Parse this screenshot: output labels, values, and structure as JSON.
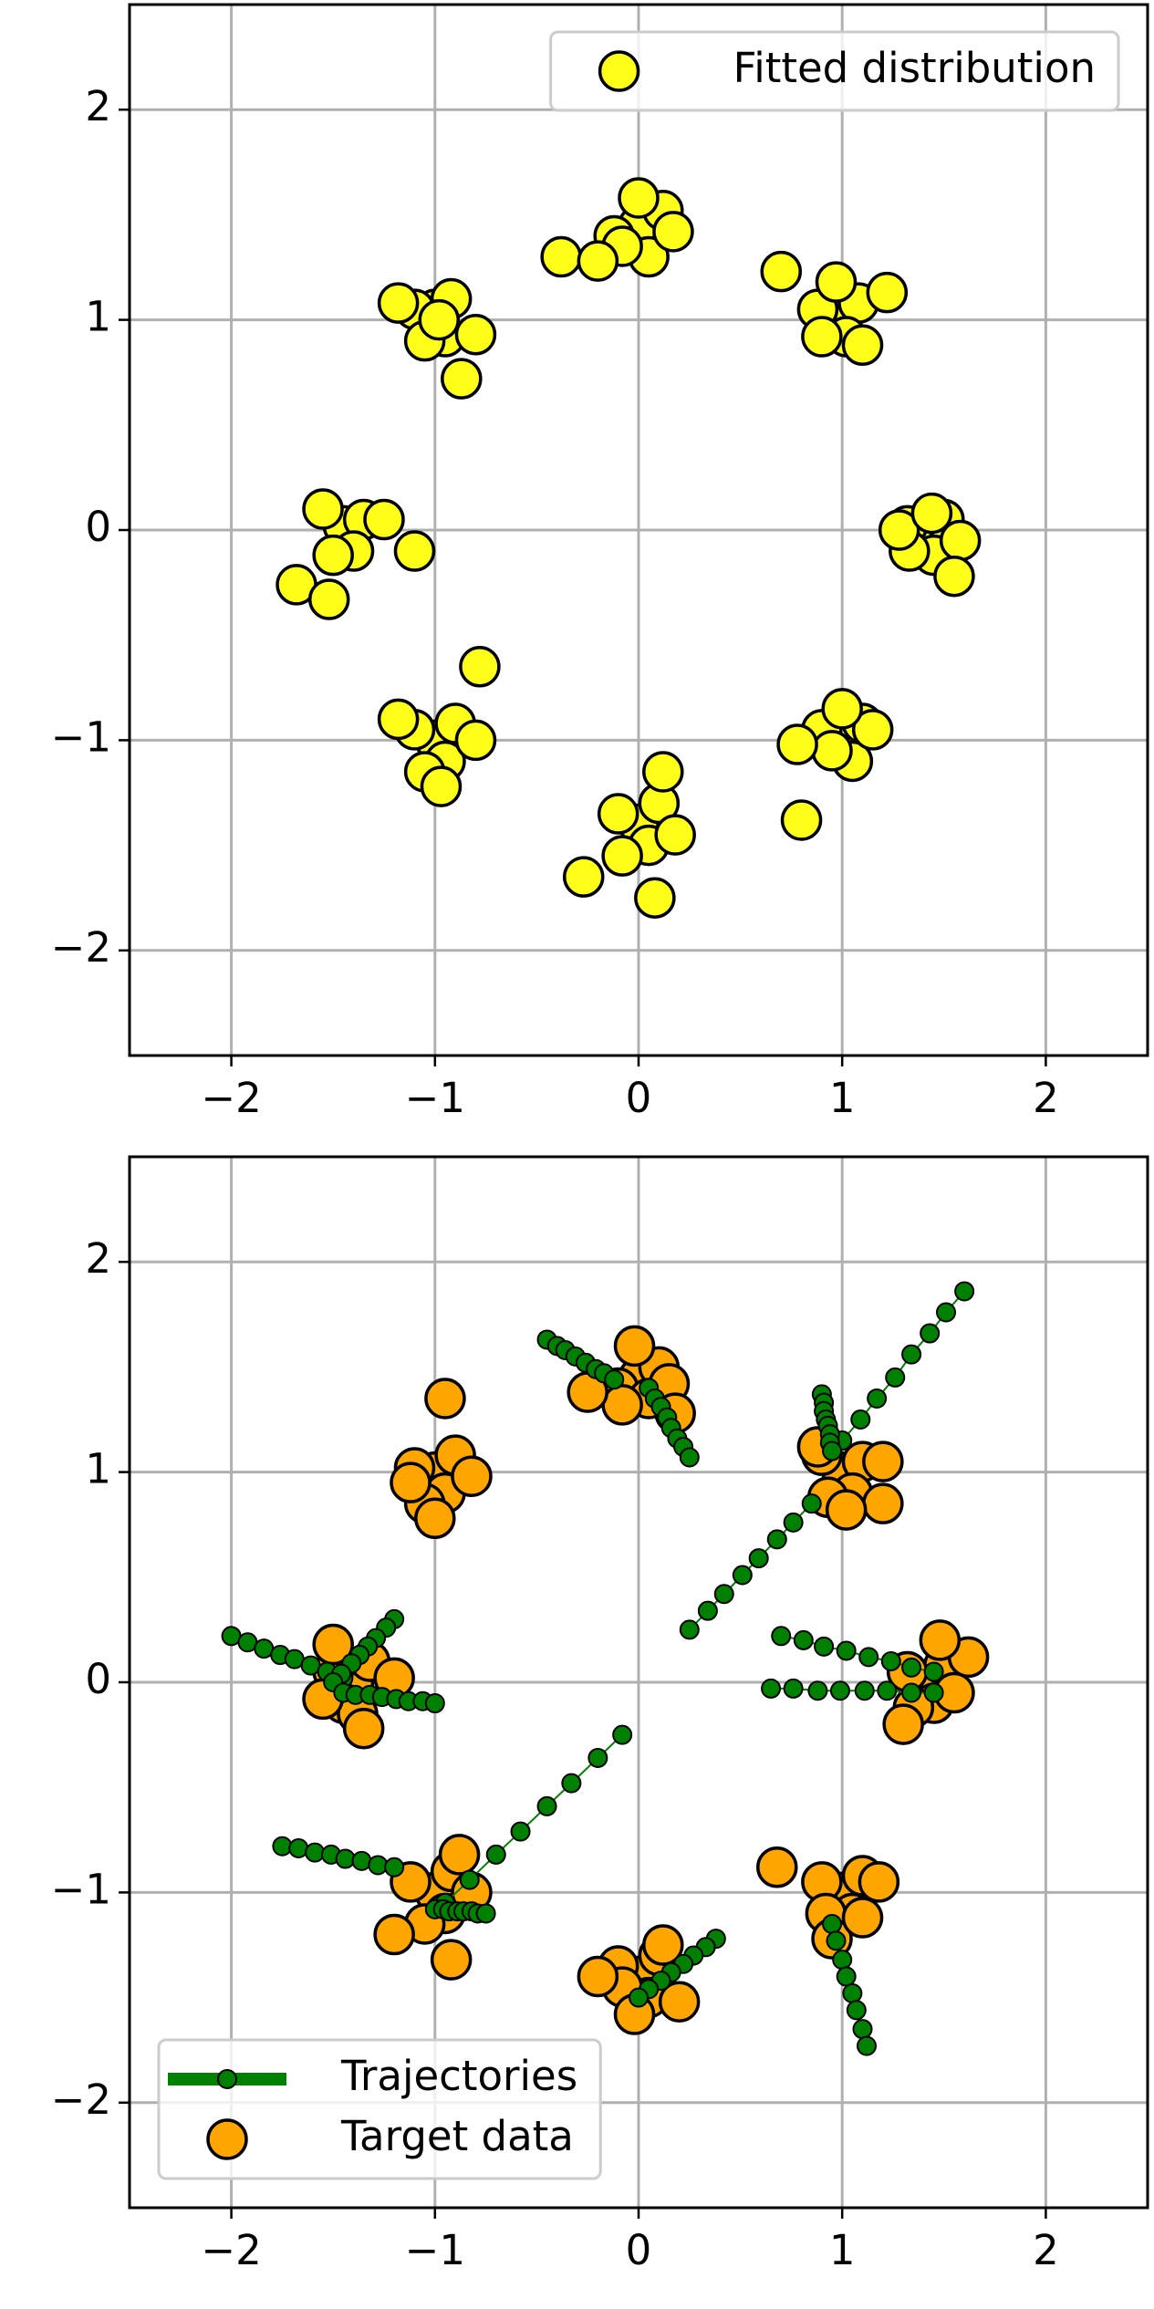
{
  "chart_data": [
    {
      "type": "scatter",
      "xlim": [
        -2.5,
        2.5
      ],
      "ylim": [
        -2.5,
        2.5
      ],
      "xticks": [
        {
          "value": -2,
          "label": "−2"
        },
        {
          "value": -1,
          "label": "−1"
        },
        0,
        1,
        2
      ],
      "yticks": [
        {
          "value": -2,
          "label": "−2"
        },
        {
          "value": -1,
          "label": "−1"
        },
        0,
        1,
        2
      ],
      "grid": true,
      "legend": "upper right",
      "series": [
        {
          "name": "Fitted distribution",
          "color": "#ffff1a",
          "x": [
            1.41,
            1.5,
            1.32,
            1.45,
            1.33,
            1.58,
            1.28,
            1.44,
            1.55,
            0.98,
            1.08,
            0.88,
            1.02,
            0.9,
            1.22,
            0.7,
            0.97,
            1.1,
            0.0,
            0.12,
            -0.12,
            0.05,
            -0.08,
            0.17,
            -0.38,
            0.0,
            -0.2,
            -1.0,
            -0.92,
            -1.1,
            -0.95,
            -1.05,
            -0.8,
            -1.18,
            -0.87,
            -0.98,
            -1.45,
            -1.35,
            -1.55,
            -1.4,
            -1.5,
            -1.25,
            -1.68,
            -1.52,
            -1.1,
            -1.0,
            -0.9,
            -1.1,
            -0.95,
            -1.05,
            -0.8,
            -1.18,
            -0.97,
            -0.78,
            0.0,
            0.1,
            -0.1,
            0.05,
            -0.08,
            0.18,
            -0.27,
            0.08,
            0.12,
            1.0,
            1.1,
            0.9,
            1.05,
            0.95,
            1.15,
            0.78,
            0.8,
            1.0
          ],
          "y": [
            -0.02,
            0.05,
            0.02,
            -0.12,
            -0.1,
            -0.05,
            0.0,
            0.08,
            -0.22,
            1.02,
            1.08,
            1.05,
            0.92,
            0.92,
            1.13,
            1.23,
            1.18,
            0.88,
            1.45,
            1.52,
            1.4,
            1.3,
            1.35,
            1.42,
            1.3,
            1.58,
            1.28,
            1.05,
            1.1,
            1.05,
            0.92,
            0.9,
            0.93,
            1.08,
            0.72,
            1.0,
            0.02,
            0.05,
            0.1,
            -0.1,
            -0.12,
            0.05,
            -0.26,
            -0.33,
            -0.1,
            -1.0,
            -0.92,
            -0.95,
            -1.1,
            -1.15,
            -1.0,
            -0.9,
            -1.22,
            -0.65,
            -1.4,
            -1.3,
            -1.35,
            -1.5,
            -1.55,
            -1.45,
            -1.65,
            -1.75,
            -1.15,
            -1.0,
            -0.92,
            -0.95,
            -1.1,
            -1.05,
            -0.95,
            -1.02,
            -1.38,
            -0.85
          ]
        }
      ]
    },
    {
      "type": "scatter",
      "xlim": [
        -2.5,
        2.5
      ],
      "ylim": [
        -2.5,
        2.5
      ],
      "xticks": [
        {
          "value": -2,
          "label": "−2"
        },
        {
          "value": -1,
          "label": "−1"
        },
        0,
        1,
        2
      ],
      "yticks": [
        {
          "value": -2,
          "label": "−2"
        },
        {
          "value": -1,
          "label": "−1"
        },
        0,
        1,
        2
      ],
      "grid": true,
      "legend": "lower left",
      "series": [
        {
          "name": "Target data",
          "color": "#ffa500",
          "x": [
            1.4,
            1.5,
            1.32,
            1.45,
            1.35,
            1.62,
            1.48,
            1.55,
            1.3,
            1.0,
            1.1,
            0.9,
            1.05,
            0.93,
            1.2,
            1.2,
            0.88,
            1.02,
            0.0,
            0.1,
            -0.1,
            0.05,
            -0.08,
            0.15,
            -0.25,
            -0.02,
            0.18,
            -1.0,
            -0.9,
            -1.1,
            -0.95,
            -1.05,
            -0.82,
            -1.12,
            -0.95,
            -1.0,
            -1.4,
            -1.32,
            -1.5,
            -1.45,
            -1.38,
            -1.2,
            -1.55,
            -1.35,
            -1.5,
            -1.0,
            -0.92,
            -1.12,
            -0.95,
            -1.05,
            -0.82,
            -1.2,
            -0.92,
            -0.88,
            0.0,
            0.1,
            -0.1,
            0.05,
            -0.08,
            0.2,
            -0.2,
            0.12,
            -0.02,
            1.0,
            1.1,
            0.9,
            1.05,
            0.92,
            1.18,
            0.68,
            0.95,
            1.1
          ],
          "y": [
            0.0,
            0.08,
            0.05,
            -0.1,
            -0.12,
            0.12,
            0.2,
            -0.05,
            -0.2,
            1.0,
            1.05,
            1.08,
            0.9,
            0.88,
            1.05,
            0.85,
            1.12,
            0.82,
            1.45,
            1.5,
            1.4,
            1.35,
            1.32,
            1.42,
            1.38,
            1.6,
            1.28,
            1.0,
            1.08,
            1.02,
            0.9,
            0.85,
            0.98,
            0.95,
            1.35,
            0.78,
            0.0,
            0.1,
            0.05,
            -0.1,
            -0.15,
            0.02,
            -0.08,
            -0.22,
            0.18,
            -1.0,
            -0.9,
            -0.95,
            -1.1,
            -1.15,
            -1.0,
            -1.2,
            -1.32,
            -0.82,
            -1.4,
            -1.3,
            -1.35,
            -1.5,
            -1.45,
            -1.52,
            -1.4,
            -1.25,
            -1.58,
            -1.0,
            -0.92,
            -0.95,
            -1.1,
            -1.1,
            -0.95,
            -0.88,
            -1.22,
            -1.12
          ]
        },
        {
          "name": "Trajectories",
          "type": "line",
          "color": "#008000",
          "paths": [
            {
              "x": [
                -0.45,
                -0.4,
                -0.36,
                -0.31,
                -0.26,
                -0.21,
                -0.17,
                -0.12
              ],
              "y": [
                1.63,
                1.6,
                1.58,
                1.55,
                1.52,
                1.49,
                1.47,
                1.44
              ]
            },
            {
              "x": [
                0.05,
                0.08,
                0.11,
                0.14,
                0.16,
                0.19,
                0.22,
                0.25
              ],
              "y": [
                1.4,
                1.35,
                1.31,
                1.26,
                1.21,
                1.16,
                1.12,
                1.07
              ]
            },
            {
              "x": [
                0.25,
                0.34,
                0.42,
                0.51,
                0.59,
                0.68,
                0.76,
                0.85
              ],
              "y": [
                0.25,
                0.34,
                0.42,
                0.51,
                0.59,
                0.68,
                0.76,
                0.85
              ]
            },
            {
              "x": [
                1.0,
                1.09,
                1.17,
                1.26,
                1.34,
                1.43,
                1.51,
                1.6
              ],
              "y": [
                1.15,
                1.25,
                1.35,
                1.45,
                1.56,
                1.66,
                1.76,
                1.86
              ]
            },
            {
              "x": [
                0.9,
                0.91,
                0.91,
                0.92,
                0.93,
                0.94,
                0.94,
                0.95
              ],
              "y": [
                1.37,
                1.33,
                1.29,
                1.25,
                1.22,
                1.18,
                1.14,
                1.1
              ]
            },
            {
              "x": [
                -2.0,
                -1.92,
                -1.84,
                -1.76,
                -1.69,
                -1.61,
                -1.53,
                -1.45
              ],
              "y": [
                0.22,
                0.19,
                0.16,
                0.13,
                0.11,
                0.08,
                0.05,
                0.02
              ]
            },
            {
              "x": [
                -1.2,
                -1.24,
                -1.29,
                -1.33,
                -1.37,
                -1.41,
                -1.46,
                -1.5
              ],
              "y": [
                0.3,
                0.26,
                0.21,
                0.17,
                0.13,
                0.09,
                0.04,
                0.0
              ]
            },
            {
              "x": [
                -1.45,
                -1.39,
                -1.32,
                -1.26,
                -1.19,
                -1.13,
                -1.06,
                -1.0
              ],
              "y": [
                -0.05,
                -0.06,
                -0.06,
                -0.07,
                -0.08,
                -0.09,
                -0.09,
                -0.1
              ]
            },
            {
              "x": [
                0.7,
                0.81,
                0.91,
                1.02,
                1.13,
                1.24,
                1.34,
                1.45
              ],
              "y": [
                0.22,
                0.2,
                0.17,
                0.15,
                0.12,
                0.1,
                0.07,
                0.05
              ]
            },
            {
              "x": [
                0.65,
                0.76,
                0.88,
                0.99,
                1.11,
                1.22,
                1.34,
                1.45
              ],
              "y": [
                -0.03,
                -0.03,
                -0.04,
                -0.04,
                -0.04,
                -0.04,
                -0.05,
                -0.05
              ]
            },
            {
              "x": [
                -1.75,
                -1.67,
                -1.59,
                -1.51,
                -1.44,
                -1.36,
                -1.28,
                -1.2
              ],
              "y": [
                -0.78,
                -0.79,
                -0.81,
                -0.82,
                -0.84,
                -0.85,
                -0.87,
                -0.88
              ]
            },
            {
              "x": [
                -0.08,
                -0.2,
                -0.33,
                -0.45,
                -0.58,
                -0.7,
                -0.83,
                -0.95
              ],
              "y": [
                -0.25,
                -0.36,
                -0.48,
                -0.59,
                -0.71,
                -0.82,
                -0.94,
                -1.05
              ]
            },
            {
              "x": [
                -1.0,
                -0.96,
                -0.93,
                -0.89,
                -0.86,
                -0.82,
                -0.79,
                -0.75
              ],
              "y": [
                -1.08,
                -1.08,
                -1.09,
                -1.09,
                -1.09,
                -1.09,
                -1.1,
                -1.1
              ]
            },
            {
              "x": [
                0.38,
                0.33,
                0.27,
                0.22,
                0.16,
                0.11,
                0.05,
                0.0
              ],
              "y": [
                -1.22,
                -1.26,
                -1.3,
                -1.34,
                -1.38,
                -1.42,
                -1.46,
                -1.5
              ]
            },
            {
              "x": [
                0.95,
                0.97,
                1.0,
                1.02,
                1.05,
                1.07,
                1.1,
                1.12
              ],
              "y": [
                -1.15,
                -1.23,
                -1.32,
                -1.4,
                -1.48,
                -1.56,
                -1.65,
                -1.73
              ]
            }
          ]
        }
      ],
      "legend_order": [
        1,
        0
      ]
    }
  ]
}
